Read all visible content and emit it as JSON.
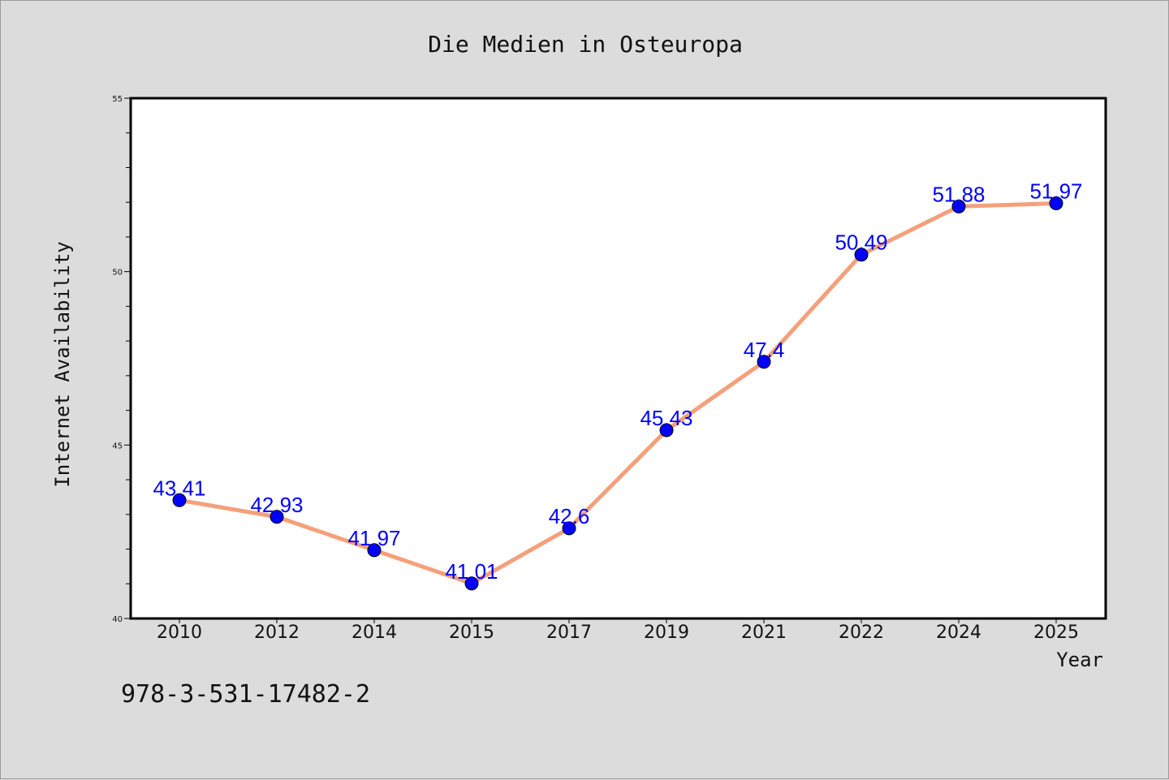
{
  "chart_data": {
    "type": "line",
    "title": "Die Medien in Osteuropa",
    "xlabel": "Year",
    "ylabel": "Internet Availability",
    "categories": [
      "2010",
      "2012",
      "2014",
      "2015",
      "2017",
      "2019",
      "2021",
      "2022",
      "2024",
      "2025"
    ],
    "series": [
      {
        "values": [
          43.41,
          42.93,
          41.97,
          41.01,
          42.6,
          45.43,
          47.4,
          50.49,
          51.88,
          51.97
        ],
        "data_labels": [
          "43.41",
          "42.93",
          "41.97",
          "41.01",
          "42.6",
          "45.43",
          "47.4",
          "50.49",
          "51.88",
          "51.97"
        ],
        "line_color": "#f4a07a",
        "marker_color": "#0000ff"
      }
    ],
    "ylim": [
      40,
      55
    ],
    "yticks": [
      "40",
      "45",
      "50",
      "55"
    ],
    "grid": false,
    "label_color": "#0000ff"
  },
  "footer": {
    "isbn": "978-3-531-17482-2"
  }
}
